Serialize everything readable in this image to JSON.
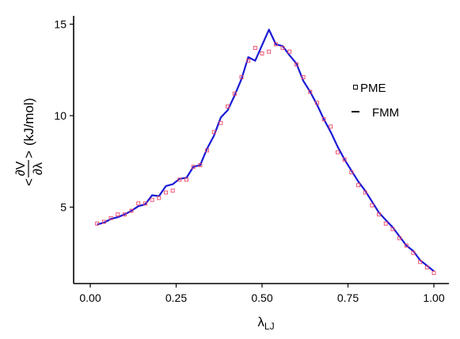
{
  "chart_data": {
    "type": "line",
    "xlabel": "λ",
    "xlabel_sub": "LJ",
    "ylabel": {
      "frac_num": "∂V",
      "frac_den": "∂λ",
      "left": "<",
      "right": ">",
      "units": "(kJ/mol)"
    },
    "xlim": [
      0,
      1
    ],
    "ylim": [
      1.3,
      15.4
    ],
    "x_ticks": [
      0.0,
      0.25,
      0.5,
      0.75,
      1.0
    ],
    "x_tick_labels": [
      "0.00",
      "0.25",
      "0.50",
      "0.75",
      "1.00"
    ],
    "y_ticks": [
      5,
      10,
      15
    ],
    "y_tick_labels": [
      "5",
      "10",
      "15"
    ],
    "grid": false,
    "legend_position": "right",
    "series": [
      {
        "name": "PME",
        "marker": "square",
        "color": "#ee4466",
        "legend_color": "#000000",
        "x": [
          0.02,
          0.04,
          0.06,
          0.08,
          0.1,
          0.12,
          0.14,
          0.16,
          0.18,
          0.2,
          0.22,
          0.24,
          0.26,
          0.28,
          0.3,
          0.32,
          0.34,
          0.36,
          0.38,
          0.4,
          0.42,
          0.44,
          0.46,
          0.48,
          0.5,
          0.52,
          0.54,
          0.56,
          0.58,
          0.6,
          0.62,
          0.64,
          0.66,
          0.68,
          0.7,
          0.72,
          0.74,
          0.76,
          0.78,
          0.8,
          0.82,
          0.84,
          0.86,
          0.88,
          0.9,
          0.92,
          0.94,
          0.96,
          0.98,
          1.0
        ],
        "y": [
          4.1,
          4.2,
          4.4,
          4.6,
          4.6,
          4.8,
          5.2,
          5.2,
          5.4,
          5.5,
          5.8,
          5.9,
          6.5,
          6.5,
          7.2,
          7.3,
          8.1,
          9.1,
          9.6,
          10.5,
          11.2,
          12.1,
          13.0,
          13.7,
          13.4,
          13.5,
          13.9,
          13.7,
          13.5,
          12.8,
          12.1,
          11.3,
          10.7,
          9.8,
          9.4,
          8.0,
          7.6,
          6.9,
          6.2,
          5.8,
          5.1,
          4.6,
          4.1,
          3.8,
          3.3,
          2.9,
          2.5,
          2.0,
          1.7,
          1.4
        ]
      },
      {
        "name": "FMM",
        "marker": "line",
        "color": "#1a1ad6",
        "legend_color": "#000000",
        "x": [
          0.02,
          0.04,
          0.06,
          0.08,
          0.1,
          0.12,
          0.14,
          0.16,
          0.18,
          0.2,
          0.22,
          0.24,
          0.26,
          0.28,
          0.3,
          0.32,
          0.34,
          0.36,
          0.38,
          0.4,
          0.42,
          0.44,
          0.46,
          0.48,
          0.5,
          0.52,
          0.54,
          0.56,
          0.58,
          0.6,
          0.62,
          0.64,
          0.66,
          0.68,
          0.7,
          0.72,
          0.74,
          0.76,
          0.78,
          0.8,
          0.82,
          0.84,
          0.86,
          0.88,
          0.9,
          0.92,
          0.94,
          0.96,
          0.98,
          1.0
        ],
        "y": [
          4.05,
          4.15,
          4.35,
          4.45,
          4.6,
          4.8,
          5.05,
          5.15,
          5.65,
          5.6,
          6.15,
          6.25,
          6.55,
          6.6,
          7.2,
          7.3,
          8.2,
          8.9,
          9.9,
          10.3,
          11.1,
          12.0,
          13.2,
          13.0,
          13.85,
          14.7,
          13.9,
          13.8,
          13.3,
          12.85,
          11.9,
          11.3,
          10.6,
          9.8,
          9.1,
          8.3,
          7.6,
          7.0,
          6.4,
          5.9,
          5.3,
          4.7,
          4.3,
          3.9,
          3.4,
          2.9,
          2.6,
          2.1,
          1.8,
          1.5
        ]
      }
    ]
  }
}
